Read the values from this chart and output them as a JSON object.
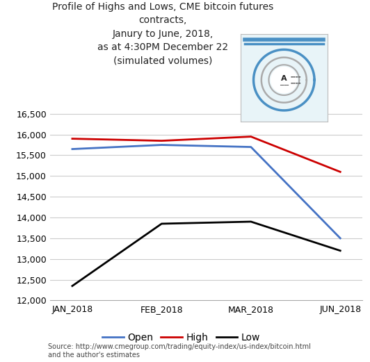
{
  "title": "Profile of Highs and Lows, CME bitcoin futures\ncontracts,\nJanury to June, 2018,\nas at 4:30PM December 22\n(simulated volumes)",
  "x_labels": [
    "JAN_2018",
    "FEB_2018",
    "MAR_2018",
    "JUN_2018"
  ],
  "open_values": [
    15650,
    15750,
    15700,
    13500
  ],
  "high_values": [
    15900,
    15850,
    15950,
    15100
  ],
  "low_values": [
    12350,
    13850,
    13900,
    13200
  ],
  "open_color": "#4472C4",
  "high_color": "#CC0000",
  "low_color": "#000000",
  "ylim": [
    12000,
    16800
  ],
  "yticks": [
    12000,
    12500,
    13000,
    13500,
    14000,
    14500,
    15000,
    15500,
    16000,
    16500
  ],
  "background_color": "#FFFFFF",
  "source_text": "Source: http://www.cmegroup.com/trading/equity-index/us-index/bitcoin.html\nand the author's estimates",
  "legend_labels": [
    "Open",
    "High",
    "Low"
  ],
  "linewidth": 2.0,
  "logo_bg": "#E8F4F8",
  "logo_border": "#AAAAAA",
  "logo_blue": "#4A90C4",
  "logo_gray": "#AAAAAA"
}
